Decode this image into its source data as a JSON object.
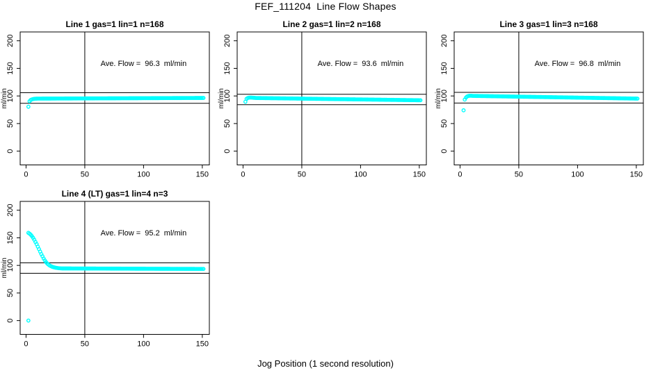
{
  "page": {
    "title": "FEF_111204  Line Flow Shapes",
    "xlabel": "Jog Position (1 second resolution)",
    "background_color": "#ffffff",
    "frame_color": "#000000",
    "marker_color": "#00FFFF"
  },
  "chart_data": [
    {
      "type": "scatter",
      "title": "Line 1 gas=1 lin=1 n=168",
      "annotation": "Ave. Flow =  96.3  ml/min",
      "ave_flow_ml_min": 96.3,
      "n": 168,
      "ylabel": "ml/min",
      "xticks": [
        0,
        50,
        100,
        150
      ],
      "yticks": [
        0,
        50,
        100,
        150,
        200
      ],
      "xlim": [
        -5,
        156
      ],
      "ylim": [
        -25,
        216
      ],
      "vline_x": 50,
      "hlines": [
        105.9,
        86.7
      ],
      "marker_color": "#00FFFF",
      "annotation_xy": [
        100,
        158
      ],
      "grid_pos": {
        "row": 0,
        "col": 0
      },
      "points_head": [
        [
          2,
          80.5
        ],
        [
          3,
          90.5
        ],
        [
          4,
          92.8
        ],
        [
          5,
          93.8
        ],
        [
          6,
          94.4
        ],
        [
          7,
          94.8
        ],
        [
          8,
          95.0
        ],
        [
          9,
          95.1
        ]
      ],
      "tail_segments": [
        {
          "x1": 10,
          "x2": 151,
          "y1": 95.2,
          "y2": 96.4,
          "step": 1
        }
      ],
      "extra_points": []
    },
    {
      "type": "scatter",
      "title": "Line 2 gas=1 lin=2 n=168",
      "annotation": "Ave. Flow =  93.6  ml/min",
      "ave_flow_ml_min": 93.6,
      "n": 168,
      "ylabel": "ml/min",
      "xticks": [
        0,
        50,
        100,
        150
      ],
      "yticks": [
        0,
        50,
        100,
        150,
        200
      ],
      "xlim": [
        -5,
        156
      ],
      "ylim": [
        -25,
        216
      ],
      "vline_x": 50,
      "hlines": [
        103.0,
        84.2
      ],
      "marker_color": "#00FFFF",
      "annotation_xy": [
        100,
        158
      ],
      "grid_pos": {
        "row": 0,
        "col": 1
      },
      "points_head": [
        [
          2,
          89.5
        ],
        [
          3,
          94.8
        ],
        [
          4,
          96.3
        ],
        [
          5,
          96.9
        ],
        [
          6,
          97.1
        ],
        [
          7,
          97.1
        ],
        [
          8,
          96.9
        ],
        [
          9,
          96.7
        ],
        [
          10,
          96.5
        ]
      ],
      "tail_segments": [
        {
          "x1": 11,
          "x2": 151,
          "y1": 96.3,
          "y2": 92.2,
          "step": 1
        }
      ],
      "extra_points": []
    },
    {
      "type": "scatter",
      "title": "Line 3 gas=1 lin=3 n=168",
      "annotation": "Ave. Flow =  96.8  ml/min",
      "ave_flow_ml_min": 96.8,
      "n": 168,
      "ylabel": "ml/min",
      "xticks": [
        0,
        50,
        100,
        150
      ],
      "yticks": [
        0,
        50,
        100,
        150,
        200
      ],
      "xlim": [
        -5,
        156
      ],
      "ylim": [
        -25,
        216
      ],
      "vline_x": 50,
      "hlines": [
        106.5,
        87.1
      ],
      "marker_color": "#00FFFF",
      "annotation_xy": [
        100,
        158
      ],
      "grid_pos": {
        "row": 0,
        "col": 2
      },
      "points_head": [
        [
          3,
          74
        ],
        [
          4,
          93.5
        ],
        [
          5,
          97
        ],
        [
          6,
          99
        ],
        [
          7,
          99.9
        ],
        [
          8,
          100.3
        ],
        [
          9,
          100.4
        ],
        [
          10,
          100.3
        ]
      ],
      "tail_segments": [
        {
          "x1": 11,
          "x2": 151,
          "y1": 100.1,
          "y2": 95.2,
          "step": 1
        }
      ],
      "extra_points": []
    },
    {
      "type": "scatter",
      "title": "Line 4 (LT) gas=1 lin=4 n=3",
      "annotation": "Ave. Flow =  95.2  ml/min",
      "ave_flow_ml_min": 95.2,
      "n": 3,
      "ylabel": "ml/min",
      "xticks": [
        0,
        50,
        100,
        150
      ],
      "yticks": [
        0,
        50,
        100,
        150,
        200
      ],
      "xlim": [
        -5,
        156
      ],
      "ylim": [
        -25,
        216
      ],
      "vline_x": 50,
      "hlines": [
        104.7,
        85.7
      ],
      "marker_color": "#00FFFF",
      "annotation_xy": [
        100,
        158
      ],
      "grid_pos": {
        "row": 1,
        "col": 0
      },
      "points_head": [
        [
          2,
          159
        ],
        [
          3,
          157.5
        ],
        [
          4,
          155.5
        ],
        [
          5,
          153
        ],
        [
          6,
          150
        ],
        [
          7,
          146.5
        ],
        [
          8,
          142.5
        ],
        [
          9,
          138.5
        ],
        [
          10,
          134
        ],
        [
          11,
          129.5
        ],
        [
          12,
          125
        ],
        [
          13,
          120.5
        ],
        [
          14,
          116.5
        ],
        [
          15,
          112.5
        ],
        [
          16,
          109
        ],
        [
          17,
          106
        ],
        [
          18,
          103.5
        ],
        [
          19,
          101.5
        ],
        [
          20,
          100
        ],
        [
          21,
          98.8
        ],
        [
          22,
          97.8
        ],
        [
          23,
          97
        ],
        [
          24,
          96.4
        ],
        [
          25,
          95.9
        ],
        [
          26,
          95.5
        ],
        [
          27,
          95.2
        ],
        [
          28,
          94.9
        ],
        [
          29,
          94.7
        ],
        [
          30,
          94.6
        ]
      ],
      "tail_segments": [
        {
          "x1": 31,
          "x2": 151,
          "y1": 94.5,
          "y2": 93.6,
          "step": 1
        }
      ],
      "extra_points": [
        [
          2,
          0
        ]
      ]
    }
  ]
}
